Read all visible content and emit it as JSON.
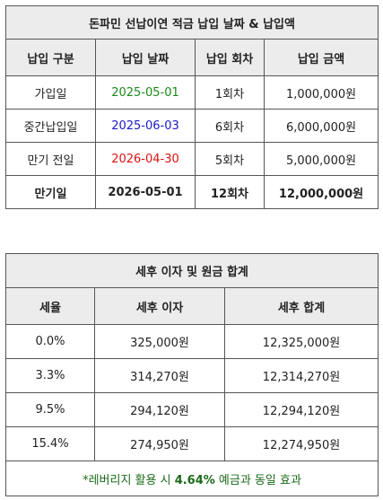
{
  "schedule": {
    "title": "돈파민 선납이연 적금 납입 날짜 & 납입액",
    "headers": [
      "납입 구분",
      "납입 날짜",
      "납입 회차",
      "납입 금액"
    ],
    "rows": [
      {
        "type": "가입일",
        "date": "2025-05-01",
        "round": "1회차",
        "amount": "1,000,000원",
        "date_color": "#1a8a1a"
      },
      {
        "type": "중간납입일",
        "date": "2025-06-03",
        "round": "6회차",
        "amount": "6,000,000원",
        "date_color": "#1a1acc"
      },
      {
        "type": "만기 전일",
        "date": "2026-04-30",
        "round": "5회차",
        "amount": "5,000,000원",
        "date_color": "#dd1111"
      }
    ],
    "total": {
      "type": "만기일",
      "date": "2026-05-01",
      "round": "12회차",
      "amount": "12,000,000원"
    }
  },
  "interest": {
    "title": "세후 이자 및 원금 합계",
    "headers": [
      "세율",
      "세후 이자",
      "세후 합계"
    ],
    "rows": [
      {
        "rate": "0.0%",
        "interest": "325,000원",
        "total": "12,325,000원"
      },
      {
        "rate": "3.3%",
        "interest": "314,270원",
        "total": "12,314,270원"
      },
      {
        "rate": "9.5%",
        "interest": "294,120원",
        "total": "12,294,120원"
      },
      {
        "rate": "15.4%",
        "interest": "274,950원",
        "total": "12,274,950원"
      }
    ],
    "note": {
      "prefix": "*레버리지 활용 시 ",
      "highlight": "4.64%",
      "suffix": " 예금과 동일 효과"
    }
  }
}
